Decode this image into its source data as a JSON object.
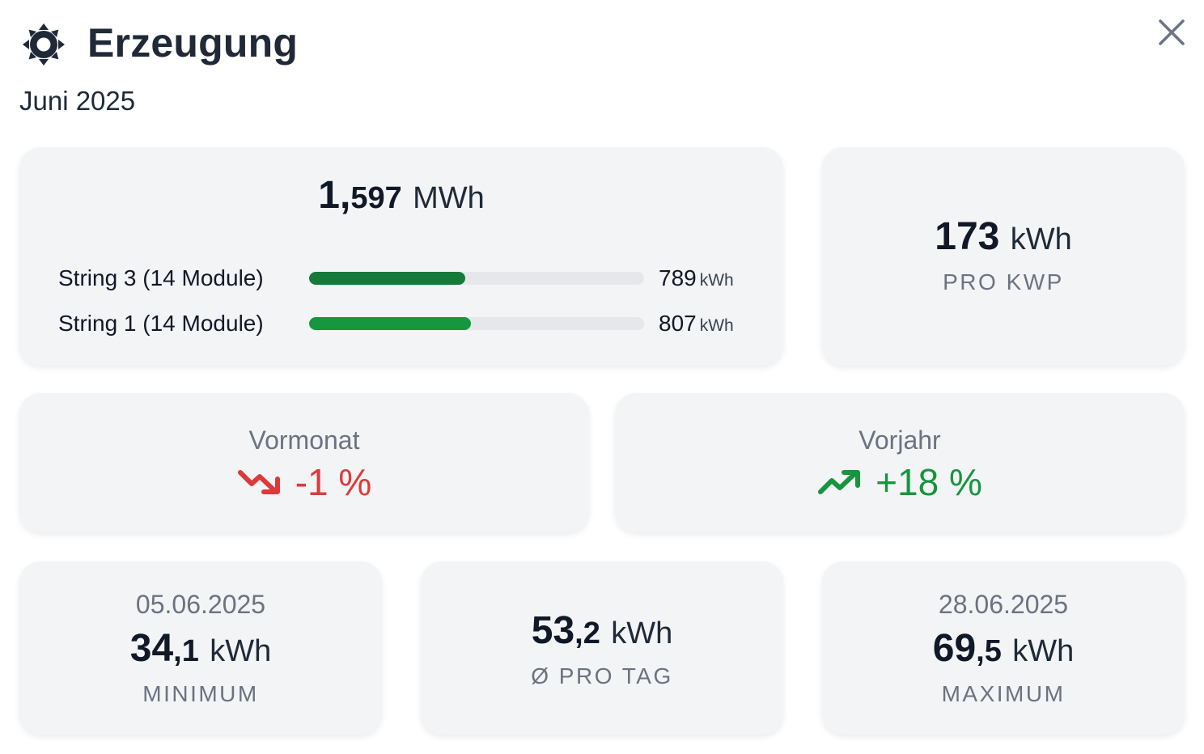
{
  "header": {
    "title": "Erzeugung",
    "subtitle": "Juni 2025",
    "icon": "sun-icon",
    "close_icon": "close-icon"
  },
  "total": {
    "int": "1,",
    "dec": "597",
    "unit": "MWh",
    "strings": [
      {
        "label": "String 3 (14 Module)",
        "value": "789",
        "unit": "kWh",
        "fraction": 0.465,
        "color": "#157a3a"
      },
      {
        "label": "String 1 (14 Module)",
        "value": "807",
        "unit": "kWh",
        "fraction": 0.483,
        "color": "#16963e"
      }
    ]
  },
  "per_kwp": {
    "value": "173",
    "unit": "kWh",
    "caption": "PRO KWP"
  },
  "compare": {
    "previous_month": {
      "title": "Vormonat",
      "value": "-1 %",
      "color": "#dc3a3a",
      "icon": "trending-down-icon"
    },
    "previous_year": {
      "title": "Vorjahr",
      "value": "+18 %",
      "color": "#16963e",
      "icon": "trending-up-icon"
    }
  },
  "minimum": {
    "date": "05.06.2025",
    "int": "34",
    "dec": ",1",
    "unit": "kWh",
    "caption": "MINIMUM"
  },
  "average": {
    "int": "53",
    "dec": ",2",
    "unit": "kWh",
    "caption": "Ø PRO TAG"
  },
  "maximum": {
    "date": "28.06.2025",
    "int": "69",
    "dec": ",5",
    "unit": "kWh",
    "caption": "MAXIMUM"
  }
}
